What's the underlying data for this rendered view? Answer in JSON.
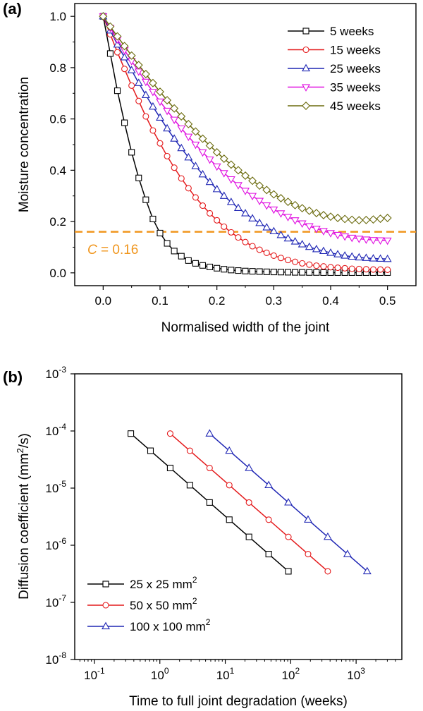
{
  "chart_data": [
    {
      "panel": "(a)",
      "type": "line",
      "xlabel": "Normalised width of the joint",
      "ylabel": "Moisture concentration",
      "xlim": [
        -0.05,
        0.55
      ],
      "ylim": [
        -0.05,
        1.05
      ],
      "xticks": [
        0.0,
        0.1,
        0.2,
        0.3,
        0.4,
        0.5
      ],
      "xtick_labels": [
        "0.0",
        "0.1",
        "0.2",
        "0.3",
        "0.4",
        "0.5"
      ],
      "yticks": [
        0.0,
        0.2,
        0.4,
        0.6,
        0.8,
        1.0
      ],
      "ytick_labels": [
        "0.0",
        "0.2",
        "0.4",
        "0.6",
        "0.8",
        "1.0"
      ],
      "grid": false,
      "legend_position": "top-right",
      "x": [
        0.0,
        0.0125,
        0.025,
        0.0375,
        0.05,
        0.0625,
        0.075,
        0.0875,
        0.1,
        0.1125,
        0.125,
        0.1375,
        0.15,
        0.1625,
        0.175,
        0.1875,
        0.2,
        0.2125,
        0.225,
        0.2375,
        0.25,
        0.2625,
        0.275,
        0.2875,
        0.3,
        0.3125,
        0.325,
        0.3375,
        0.35,
        0.3625,
        0.375,
        0.3875,
        0.4,
        0.4125,
        0.425,
        0.4375,
        0.45,
        0.4625,
        0.475,
        0.4875,
        0.5
      ],
      "series": [
        {
          "name": "5 weeks",
          "color": "#000000",
          "marker": "square",
          "values": [
            1.0,
            0.855,
            0.71,
            0.585,
            0.47,
            0.37,
            0.285,
            0.21,
            0.155,
            0.115,
            0.085,
            0.065,
            0.048,
            0.037,
            0.029,
            0.023,
            0.018,
            0.014,
            0.011,
            0.009,
            0.007,
            0.006,
            0.005,
            0.004,
            0.0035,
            0.003,
            0.0025,
            0.002,
            0.002,
            0.0015,
            0.0015,
            0.001,
            0.001,
            0.001,
            0.001,
            0.001,
            0.001,
            0.001,
            0.001,
            0.001,
            0.001
          ]
        },
        {
          "name": "15 weeks",
          "color": "#e41a1c",
          "marker": "circle",
          "values": [
            1.0,
            0.93,
            0.86,
            0.795,
            0.73,
            0.67,
            0.61,
            0.555,
            0.505,
            0.455,
            0.41,
            0.368,
            0.33,
            0.294,
            0.262,
            0.232,
            0.205,
            0.18,
            0.158,
            0.138,
            0.12,
            0.104,
            0.09,
            0.078,
            0.067,
            0.058,
            0.05,
            0.043,
            0.037,
            0.032,
            0.028,
            0.025,
            0.022,
            0.02,
            0.018,
            0.016,
            0.015,
            0.014,
            0.013,
            0.013,
            0.012
          ]
        },
        {
          "name": "25 weeks",
          "color": "#1f26b4",
          "marker": "triangle-up",
          "values": [
            1.0,
            0.945,
            0.89,
            0.84,
            0.79,
            0.74,
            0.693,
            0.648,
            0.605,
            0.563,
            0.523,
            0.486,
            0.45,
            0.416,
            0.384,
            0.354,
            0.326,
            0.3,
            0.276,
            0.253,
            0.232,
            0.212,
            0.194,
            0.177,
            0.162,
            0.147,
            0.134,
            0.122,
            0.111,
            0.101,
            0.092,
            0.085,
            0.078,
            0.072,
            0.067,
            0.063,
            0.06,
            0.058,
            0.056,
            0.055,
            0.054
          ]
        },
        {
          "name": "35 weeks",
          "color": "#e010e0",
          "marker": "triangle-down",
          "values": [
            1.0,
            0.955,
            0.91,
            0.868,
            0.826,
            0.785,
            0.745,
            0.706,
            0.668,
            0.632,
            0.597,
            0.563,
            0.531,
            0.5,
            0.47,
            0.442,
            0.415,
            0.389,
            0.365,
            0.342,
            0.32,
            0.3,
            0.281,
            0.263,
            0.247,
            0.232,
            0.218,
            0.205,
            0.193,
            0.182,
            0.172,
            0.163,
            0.155,
            0.148,
            0.142,
            0.137,
            0.133,
            0.13,
            0.128,
            0.127,
            0.126
          ]
        },
        {
          "name": "45 weeks",
          "color": "#6b6b0e",
          "marker": "diamond",
          "values": [
            1.0,
            0.96,
            0.922,
            0.884,
            0.847,
            0.81,
            0.775,
            0.74,
            0.706,
            0.673,
            0.641,
            0.61,
            0.58,
            0.551,
            0.523,
            0.496,
            0.47,
            0.445,
            0.422,
            0.4,
            0.379,
            0.359,
            0.34,
            0.323,
            0.306,
            0.291,
            0.277,
            0.264,
            0.252,
            0.242,
            0.233,
            0.225,
            0.219,
            0.214,
            0.21,
            0.207,
            0.205,
            0.206,
            0.208,
            0.211,
            0.214
          ]
        }
      ],
      "reference_line": {
        "y": 0.16,
        "color": "#f0961e",
        "style": "dashed",
        "label_var": "C",
        "label_rest": " = 0.16"
      }
    },
    {
      "panel": "(b)",
      "type": "line",
      "xlabel": "Time to full joint degradation (weeks)",
      "ylabel_pre": "Diffusion coefficient (mm",
      "ylabel_sup": "2",
      "ylabel_post": "/s)",
      "xscale": "log",
      "yscale": "log",
      "xlim": [
        0.05,
        5000
      ],
      "ylim": [
        1e-08,
        0.001
      ],
      "xticks": [
        0.1,
        1,
        10,
        100,
        1000
      ],
      "xtick_exponents": [
        "-1",
        "0",
        "1",
        "2",
        "3"
      ],
      "yticks": [
        1e-08,
        1e-07,
        1e-06,
        1e-05,
        0.0001,
        0.001
      ],
      "ytick_exponents": [
        "-8",
        "-7",
        "-6",
        "-5",
        "-4",
        "-3"
      ],
      "tick_base": "10",
      "grid": false,
      "legend_position": "bottom-left",
      "series": [
        {
          "name_pre": "25 x 25 mm",
          "name_sup": "2",
          "color": "#000000",
          "marker": "square",
          "x": [
            0.36,
            0.72,
            1.44,
            2.88,
            5.76,
            11.52,
            23.04,
            46.08,
            92.16
          ],
          "y": [
            9e-05,
            4.5e-05,
            2.25e-05,
            1.125e-05,
            5.6e-06,
            2.8e-06,
            1.4e-06,
            7e-07,
            3.5e-07
          ]
        },
        {
          "name_pre": "50 x 50 mm",
          "name_sup": "2",
          "color": "#e41a1c",
          "marker": "circle",
          "x": [
            1.44,
            2.88,
            5.76,
            11.52,
            23.04,
            46.08,
            92.16,
            184.3,
            368.6
          ],
          "y": [
            9e-05,
            4.5e-05,
            2.25e-05,
            1.125e-05,
            5.6e-06,
            2.8e-06,
            1.4e-06,
            7e-07,
            3.5e-07
          ]
        },
        {
          "name_pre": "100 x 100 mm",
          "name_sup": "2",
          "color": "#1f26b4",
          "marker": "triangle-up",
          "x": [
            5.76,
            11.52,
            23.04,
            46.08,
            92.16,
            184.3,
            368.6,
            737.3,
            1474.6
          ],
          "y": [
            9e-05,
            4.5e-05,
            2.25e-05,
            1.125e-05,
            5.6e-06,
            2.8e-06,
            1.4e-06,
            7e-07,
            3.5e-07
          ]
        }
      ]
    }
  ]
}
